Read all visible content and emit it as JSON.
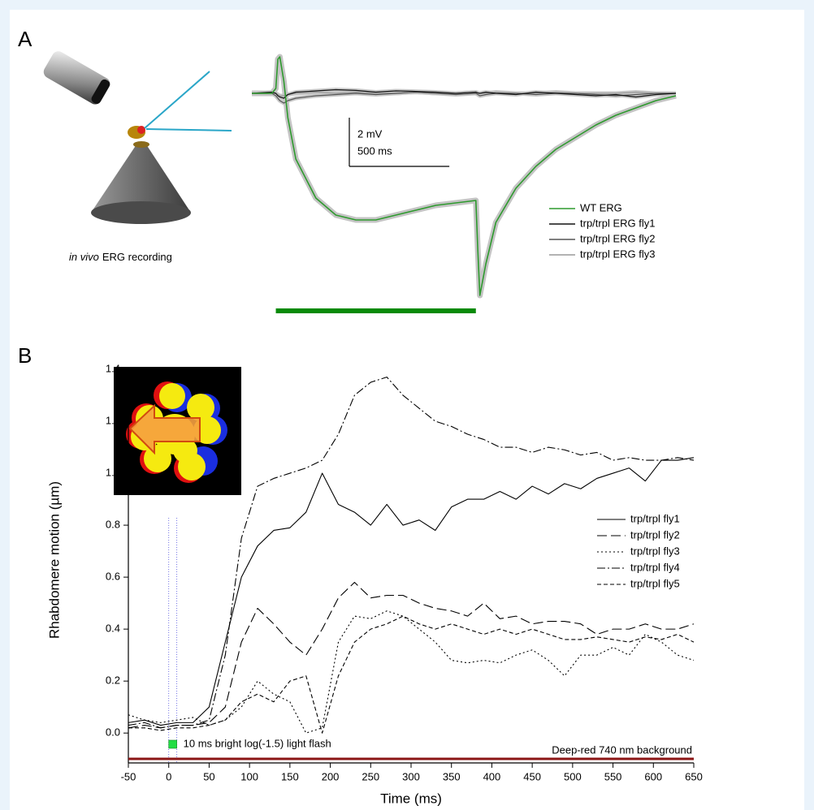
{
  "chart_data": [
    {
      "type": "line",
      "panel": "A",
      "caption_italic": "in vivo",
      "caption": "ERG recording",
      "x": [
        -120,
        -20,
        0,
        10,
        20,
        40,
        60,
        100,
        200,
        300,
        400,
        500,
        600,
        700,
        800,
        900,
        1000,
        1010,
        1020,
        1050,
        1100,
        1200,
        1300,
        1400,
        1500,
        1600,
        1700,
        1800,
        1900,
        2000
      ],
      "xlim": [
        -120,
        2000
      ],
      "ylim": [
        -8.7,
        1.7
      ],
      "series": [
        {
          "name": "WT ERG",
          "color": "#2e9a2e",
          "values": [
            0,
            0,
            0.2,
            1.4,
            1.5,
            0.5,
            -1.0,
            -2.7,
            -4.3,
            -5.0,
            -5.2,
            -5.2,
            -5.0,
            -4.8,
            -4.6,
            -4.5,
            -4.4,
            -6.5,
            -8.3,
            -7.0,
            -5.3,
            -3.9,
            -3.0,
            -2.3,
            -1.8,
            -1.3,
            -0.9,
            -0.6,
            -0.3,
            -0.1
          ]
        },
        {
          "name": "trp/trpl ERG fly1",
          "color": "#111111",
          "values": [
            0,
            0.05,
            0,
            -0.1,
            -0.15,
            -0.2,
            -0.05,
            0.05,
            0.1,
            0.15,
            0.12,
            0.05,
            0.1,
            0.08,
            0.05,
            0.0,
            0.05,
            0.02,
            0.0,
            0.05,
            0.0,
            -0.05,
            0.05,
            0.0,
            -0.05,
            -0.1,
            -0.05,
            -0.15,
            -0.05,
            0
          ]
        },
        {
          "name": "trp/trpl ERG fly2",
          "color": "#555555",
          "values": [
            0,
            0,
            -0.1,
            -0.2,
            -0.3,
            -0.4,
            -0.3,
            -0.2,
            -0.1,
            -0.05,
            0,
            -0.05,
            0,
            0.05,
            0,
            -0.05,
            0,
            -0.05,
            -0.1,
            -0.05,
            0,
            0,
            -0.05,
            0,
            0,
            -0.05,
            -0.1,
            -0.05,
            0,
            0
          ]
        },
        {
          "name": "trp/trpl ERG fly3",
          "color": "#9a9a9a",
          "values": [
            0,
            0,
            0,
            -0.05,
            -0.1,
            -0.1,
            -0.05,
            0,
            0.05,
            0,
            0.05,
            0,
            0,
            0.05,
            0,
            0,
            0.05,
            0,
            0,
            0,
            0.05,
            0,
            0,
            0.05,
            0,
            0,
            0,
            0.05,
            0,
            0
          ]
        }
      ],
      "scale_bar": {
        "x": 500,
        "x_label": "500 ms",
        "y": 2,
        "y_label": "2 mV"
      },
      "stimulus": {
        "start": 0,
        "end": 1000,
        "color": "#078a07"
      }
    },
    {
      "type": "line",
      "panel": "B",
      "xlabel": "Time (ms)",
      "ylabel": "Rhabdomere motion (µm)",
      "x": [
        -50,
        -30,
        -10,
        10,
        30,
        50,
        70,
        90,
        110,
        130,
        150,
        170,
        190,
        210,
        230,
        250,
        270,
        290,
        310,
        330,
        350,
        370,
        390,
        410,
        430,
        450,
        470,
        490,
        510,
        530,
        550,
        570,
        590,
        610,
        630,
        650
      ],
      "xlim": [
        -50,
        650
      ],
      "ylim": [
        -0.115,
        1.4
      ],
      "xticks": [
        -50,
        0,
        50,
        100,
        150,
        200,
        250,
        300,
        350,
        400,
        450,
        500,
        550,
        600,
        650
      ],
      "yticks": [
        {
          "value": 0,
          "label": "0.0"
        },
        0.2,
        0.4,
        0.6,
        0.8,
        {
          "value": 1,
          "label": "1.0"
        },
        1.2,
        1.4
      ],
      "series": [
        {
          "name": "trp/trpl fly1",
          "color": "#000000",
          "dash": "solid",
          "values": [
            0.04,
            0.05,
            0.03,
            0.04,
            0.04,
            0.1,
            0.35,
            0.6,
            0.72,
            0.78,
            0.79,
            0.85,
            1.0,
            0.88,
            0.85,
            0.8,
            0.88,
            0.8,
            0.82,
            0.78,
            0.87,
            0.9,
            0.9,
            0.93,
            0.9,
            0.95,
            0.92,
            0.96,
            0.94,
            0.98,
            1.0,
            1.02,
            0.97,
            1.05,
            1.05,
            1.06
          ]
        },
        {
          "name": "trp/trpl fly2",
          "color": "#000000",
          "dash": "long-dash",
          "values": [
            0.02,
            0.03,
            0.02,
            0.03,
            0.03,
            0.04,
            0.1,
            0.35,
            0.48,
            0.42,
            0.35,
            0.3,
            0.4,
            0.52,
            0.58,
            0.52,
            0.53,
            0.53,
            0.5,
            0.48,
            0.47,
            0.45,
            0.5,
            0.44,
            0.45,
            0.42,
            0.43,
            0.43,
            0.42,
            0.38,
            0.4,
            0.4,
            0.42,
            0.4,
            0.4,
            0.42
          ]
        },
        {
          "name": "trp/trpl fly3",
          "color": "#000000",
          "dash": "dot",
          "values": [
            0.07,
            0.05,
            0.04,
            0.05,
            0.06,
            0.03,
            0.05,
            0.1,
            0.2,
            0.15,
            0.12,
            0.0,
            0.02,
            0.35,
            0.45,
            0.44,
            0.47,
            0.45,
            0.4,
            0.35,
            0.28,
            0.27,
            0.28,
            0.27,
            0.3,
            0.32,
            0.28,
            0.22,
            0.3,
            0.3,
            0.33,
            0.3,
            0.38,
            0.35,
            0.3,
            0.28
          ]
        },
        {
          "name": "trp/trpl fly4",
          "color": "#000000",
          "dash": "dash-dot",
          "values": [
            0.03,
            0.04,
            0.02,
            0.03,
            0.03,
            0.05,
            0.3,
            0.75,
            0.95,
            0.98,
            1.0,
            1.02,
            1.05,
            1.15,
            1.3,
            1.35,
            1.37,
            1.3,
            1.25,
            1.2,
            1.18,
            1.15,
            1.13,
            1.1,
            1.1,
            1.08,
            1.1,
            1.09,
            1.07,
            1.08,
            1.05,
            1.06,
            1.05,
            1.05,
            1.06,
            1.05
          ]
        },
        {
          "name": "trp/trpl fly5",
          "color": "#000000",
          "dash": "dash",
          "values": [
            0.02,
            0.02,
            0.01,
            0.02,
            0.02,
            0.03,
            0.05,
            0.12,
            0.15,
            0.12,
            0.2,
            0.22,
            0.0,
            0.22,
            0.35,
            0.4,
            0.42,
            0.45,
            0.42,
            0.4,
            0.42,
            0.4,
            0.38,
            0.4,
            0.38,
            0.4,
            0.38,
            0.36,
            0.36,
            0.37,
            0.36,
            0.35,
            0.37,
            0.36,
            0.38,
            0.35
          ]
        }
      ],
      "flash": {
        "start": 0,
        "end": 10,
        "color": "#22dd44",
        "label": "10 ms bright log(-1.5) light flash"
      },
      "background": {
        "label": "Deep-red 740 nm background",
        "color": "#8b1414"
      }
    }
  ]
}
